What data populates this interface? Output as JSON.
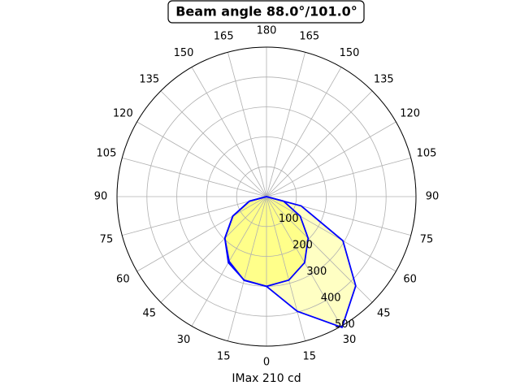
{
  "chart_data": {
    "type": "polar",
    "title": "Beam angle 88.0°/101.0°",
    "xlabel": "IMax 210 cd",
    "rlim": [
      0,
      500
    ],
    "rticks": [
      100,
      200,
      300,
      400,
      500
    ],
    "grid": true,
    "theta": [
      -90,
      -75,
      -60,
      -45,
      -30,
      -15,
      0,
      15,
      30,
      45,
      60,
      75,
      90
    ],
    "thetaticks": [
      0,
      15,
      30,
      45,
      60,
      75,
      90,
      105,
      120,
      135,
      150,
      165,
      180,
      {
        "value": 195,
        "label": "165"
      },
      {
        "value": 210,
        "label": "150"
      },
      {
        "value": 225,
        "label": "135"
      },
      {
        "value": 240,
        "label": "120"
      },
      {
        "value": 255,
        "label": "105"
      },
      {
        "value": 270,
        "label": "90"
      },
      {
        "value": 285,
        "label": "75"
      },
      {
        "value": 300,
        "label": "60"
      },
      {
        "value": 315,
        "label": "45"
      },
      {
        "value": 330,
        "label": "30"
      },
      {
        "value": 345,
        "label": "15"
      }
    ],
    "series": [
      {
        "color": "#0000ff",
        "fill": "#ffffb8",
        "values": [
          0,
          59,
          130,
          197,
          250,
          290,
          300,
          397,
          505,
          422,
          295,
          120,
          0
        ]
      },
      {
        "color": "#0000ff",
        "fill": "#ffff80",
        "values": [
          0,
          59,
          130,
          197,
          255,
          289,
          300,
          289,
          255,
          197,
          130,
          59,
          0
        ]
      }
    ]
  }
}
